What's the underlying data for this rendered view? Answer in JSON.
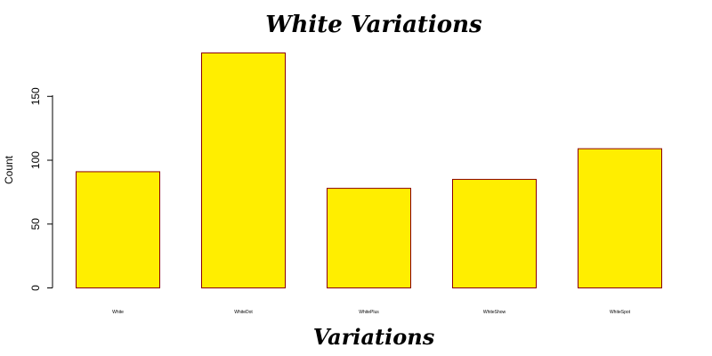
{
  "chart_data": {
    "type": "bar",
    "title": "White Variations",
    "xlabel": "Variations",
    "ylabel": "Count",
    "categories": [
      "White",
      "WhiteDot",
      "WhitePlus",
      "WhiteShow",
      "WhiteSpot"
    ],
    "values": [
      91,
      184,
      78,
      85,
      109
    ],
    "ylim": [
      0,
      184
    ],
    "yticks": [
      0,
      50,
      100,
      150
    ],
    "grid": false,
    "legend": "none",
    "bar_fill": "#ffee00",
    "bar_stroke": "#8b0000"
  }
}
